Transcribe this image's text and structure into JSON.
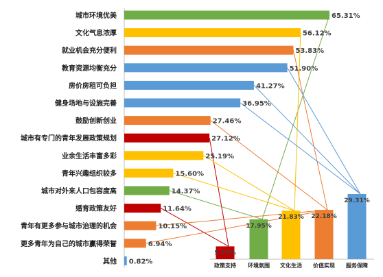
{
  "chart_data": [
    {
      "type": "bar",
      "orientation": "horizontal",
      "title": "",
      "xlabel": "",
      "ylabel": "",
      "grid": false,
      "legend": "none",
      "xlim": [
        0,
        70
      ],
      "categories": [
        "城市环境优美",
        "文化气息浓厚",
        "就业机会充分便利",
        "教育资源均衡充分",
        "房价房租可负担",
        "健身场地与设施完善",
        "鼓励创新创业",
        "城市有专门的青年发展政策规划",
        "业余生活丰富多彩",
        "青年兴趣组织较多",
        "城市对外来人口包容度高",
        "婚育政策友好",
        "青年有更多参与城市治理的机会",
        "更多青年为自己的城市赢得荣誉",
        "其他"
      ],
      "values": [
        65.31,
        56.12,
        53.83,
        51.9,
        41.27,
        36.95,
        27.46,
        27.12,
        25.19,
        15.6,
        14.37,
        11.64,
        10.15,
        6.94,
        0.82
      ],
      "value_labels": [
        "65.31%",
        "56.12%",
        "53.83%",
        "51.90%",
        "41.27%",
        "36.95%",
        "27.46%",
        "27.12%",
        "25.19%",
        "15.60%",
        "14.37%",
        "11.64%",
        "10.15%",
        "6.94%",
        "0.82%"
      ],
      "bar_colors": [
        "#70ad47",
        "#ffc000",
        "#ed7d31",
        "#5b9bd5",
        "#5b9bd5",
        "#5b9bd5",
        "#ed7d31",
        "#c00000",
        "#ffc000",
        "#ffc000",
        "#70ad47",
        "#c00000",
        "#ed7d31",
        "#ed7d31",
        "#5b9bd5"
      ]
    },
    {
      "type": "bar",
      "orientation": "vertical",
      "title": "",
      "xlabel": "",
      "ylabel": "",
      "grid": false,
      "legend": "none",
      "ylim": [
        0,
        35
      ],
      "categories": [
        "政策支持",
        "环境氛围",
        "文化生活",
        "价值实现",
        "服务保障"
      ],
      "values": [
        5.75,
        17.95,
        21.83,
        22.18,
        29.31
      ],
      "value_labels": [
        "5.75%",
        "17.95%",
        "21.83%",
        "22.18%",
        "29.31%"
      ],
      "bar_colors": [
        "#c00000",
        "#70ad47",
        "#ffc000",
        "#ed7d31",
        "#5b9bd5"
      ]
    }
  ],
  "connectors": [
    {
      "from": 0,
      "to": 1,
      "color": "#70ad47"
    },
    {
      "from": 1,
      "to": 2,
      "color": "#ffc000"
    },
    {
      "from": 2,
      "to": 3,
      "color": "#ed7d31"
    },
    {
      "from": 3,
      "to": 4,
      "color": "#5b9bd5"
    },
    {
      "from": 4,
      "to": 4,
      "color": "#5b9bd5"
    },
    {
      "from": 5,
      "to": 4,
      "color": "#5b9bd5"
    },
    {
      "from": 6,
      "to": 3,
      "color": "#ed7d31"
    },
    {
      "from": 7,
      "to": 0,
      "color": "#c00000"
    },
    {
      "from": 8,
      "to": 2,
      "color": "#ffc000"
    },
    {
      "from": 9,
      "to": 2,
      "color": "#ffc000"
    },
    {
      "from": 10,
      "to": 1,
      "color": "#70ad47"
    },
    {
      "from": 11,
      "to": 0,
      "color": "#c00000"
    },
    {
      "from": 12,
      "to": 3,
      "color": "#ed7d31"
    },
    {
      "from": 13,
      "to": 3,
      "color": "#ed7d31"
    }
  ]
}
